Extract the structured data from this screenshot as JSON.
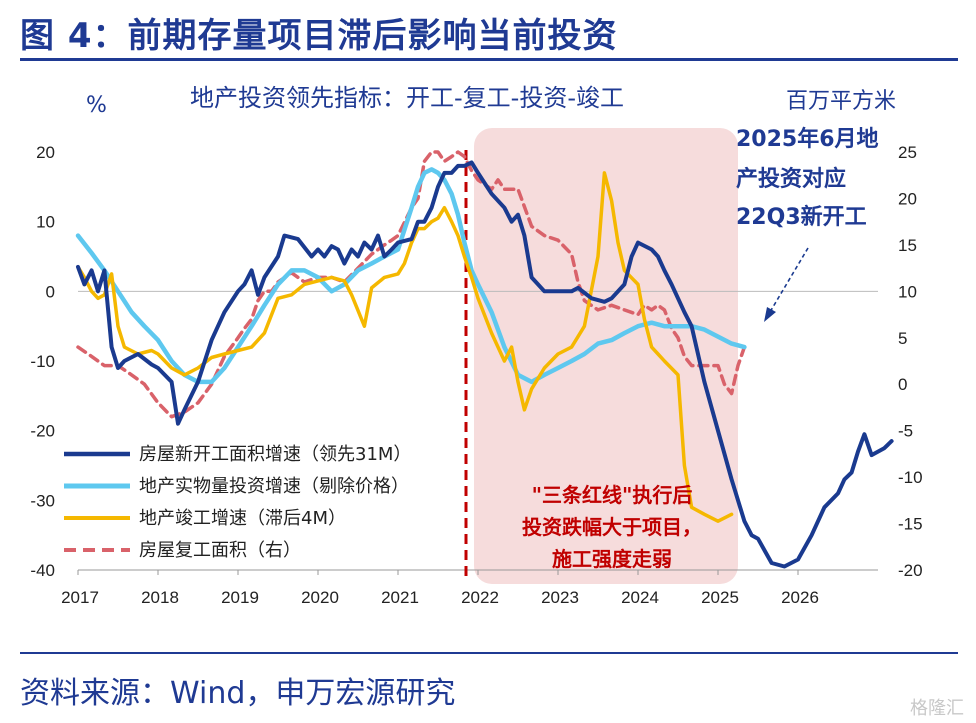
{
  "page": {
    "title": "图 4：前期存量项目滞后影响当前投资",
    "source": "资料来源：Wind，申万宏源研究",
    "watermark": "格隆汇"
  },
  "colors": {
    "navy": "#1a3a8f",
    "lightblue": "#5ec8ef",
    "gold": "#f5b800",
    "red_dash": "#d9626a",
    "shade": "#f6dcdc",
    "vline": "#c00000"
  },
  "chart_data": {
    "type": "line",
    "subtitle": "地产投资领先指标：开工-复工-投资-竣工",
    "left_unit": "%",
    "right_unit": "百万平方米",
    "x_ticks": [
      "2017",
      "2018",
      "2019",
      "2020",
      "2021",
      "2022",
      "2023",
      "2024",
      "2025",
      "2026"
    ],
    "x_range": [
      2017,
      2027
    ],
    "y_left": {
      "min": -40,
      "max": 20,
      "ticks": [
        "20",
        "10",
        "0",
        "-10",
        "-20",
        "-30",
        "-40"
      ]
    },
    "y_right": {
      "min": -20,
      "max": 25,
      "ticks": [
        "25",
        "20",
        "15",
        "10",
        "5",
        "0",
        "-5",
        "-10",
        "-15",
        "-20"
      ]
    },
    "shaded_region": {
      "x": [
        2021.95,
        2025.25
      ]
    },
    "vertical_line": {
      "x": 2021.85
    },
    "annotations": {
      "top_right": [
        "2025年6月地",
        "产投资对应",
        "22Q3新开工"
      ],
      "shade_note": [
        "\"三条红线\"执行后",
        "投资跌幅大于项目，",
        "施工强度走弱"
      ]
    },
    "series": [
      {
        "name": "房屋新开工面积增速（领先31M）",
        "axis": "left",
        "style": "navy",
        "points": [
          [
            2017.0,
            3.5
          ],
          [
            2017.08,
            1
          ],
          [
            2017.17,
            3
          ],
          [
            2017.25,
            0
          ],
          [
            2017.33,
            3
          ],
          [
            2017.42,
            -8
          ],
          [
            2017.5,
            -11
          ],
          [
            2017.58,
            -10
          ],
          [
            2017.75,
            -9
          ],
          [
            2017.92,
            -10.5
          ],
          [
            2018.0,
            -11
          ],
          [
            2018.17,
            -13
          ],
          [
            2018.25,
            -19
          ],
          [
            2018.33,
            -17
          ],
          [
            2018.5,
            -13
          ],
          [
            2018.67,
            -7
          ],
          [
            2018.83,
            -3
          ],
          [
            2019.0,
            0
          ],
          [
            2019.08,
            1
          ],
          [
            2019.17,
            3
          ],
          [
            2019.25,
            -0.5
          ],
          [
            2019.33,
            2
          ],
          [
            2019.5,
            5
          ],
          [
            2019.58,
            8
          ],
          [
            2019.75,
            7.5
          ],
          [
            2019.92,
            5
          ],
          [
            2020.0,
            6
          ],
          [
            2020.08,
            5
          ],
          [
            2020.17,
            6.5
          ],
          [
            2020.25,
            6
          ],
          [
            2020.33,
            4
          ],
          [
            2020.42,
            6
          ],
          [
            2020.5,
            5
          ],
          [
            2020.58,
            7
          ],
          [
            2020.67,
            6
          ],
          [
            2020.75,
            8
          ],
          [
            2020.83,
            5
          ],
          [
            2020.92,
            6
          ],
          [
            2021.0,
            7
          ],
          [
            2021.17,
            7.5
          ],
          [
            2021.25,
            10
          ],
          [
            2021.33,
            10
          ],
          [
            2021.42,
            12
          ],
          [
            2021.5,
            15
          ],
          [
            2021.58,
            17
          ],
          [
            2021.67,
            17
          ],
          [
            2021.75,
            18
          ],
          [
            2021.83,
            18
          ],
          [
            2021.92,
            18.5
          ],
          [
            2022.0,
            17
          ],
          [
            2022.17,
            14
          ],
          [
            2022.33,
            12
          ],
          [
            2022.42,
            10
          ],
          [
            2022.5,
            11
          ],
          [
            2022.58,
            8
          ],
          [
            2022.67,
            2
          ],
          [
            2022.83,
            0
          ],
          [
            2022.92,
            0
          ],
          [
            2023.0,
            0
          ],
          [
            2023.17,
            0
          ],
          [
            2023.25,
            0.5
          ],
          [
            2023.42,
            -1
          ],
          [
            2023.58,
            -1.5
          ],
          [
            2023.67,
            -1
          ],
          [
            2023.83,
            1
          ],
          [
            2023.92,
            5
          ],
          [
            2024.0,
            7
          ],
          [
            2024.17,
            6
          ],
          [
            2024.25,
            5
          ],
          [
            2024.33,
            3
          ],
          [
            2024.42,
            1
          ],
          [
            2024.5,
            -1
          ],
          [
            2024.58,
            -3
          ],
          [
            2024.67,
            -5
          ],
          [
            2024.83,
            -13
          ],
          [
            2025.0,
            -20
          ],
          [
            2025.17,
            -27
          ],
          [
            2025.33,
            -33
          ],
          [
            2025.42,
            -35
          ],
          [
            2025.5,
            -35.5
          ],
          [
            2025.67,
            -39
          ],
          [
            2025.83,
            -39.5
          ],
          [
            2026.0,
            -38.5
          ],
          [
            2026.17,
            -35
          ],
          [
            2026.33,
            -31
          ],
          [
            2026.5,
            -29
          ],
          [
            2026.58,
            -27
          ],
          [
            2026.67,
            -26
          ],
          [
            2026.75,
            -23
          ],
          [
            2026.83,
            -20.5
          ],
          [
            2026.92,
            -23.5
          ],
          [
            2027.0,
            -23
          ],
          [
            2027.08,
            -22.5
          ],
          [
            2027.17,
            -21.5
          ]
        ]
      },
      {
        "name": "地产实物量投资增速（剔除价格）",
        "axis": "left",
        "style": "lightblue",
        "points": [
          [
            2017.0,
            8
          ],
          [
            2017.17,
            5.5
          ],
          [
            2017.33,
            3
          ],
          [
            2017.5,
            0
          ],
          [
            2017.67,
            -3
          ],
          [
            2017.83,
            -5
          ],
          [
            2018.0,
            -7
          ],
          [
            2018.17,
            -10
          ],
          [
            2018.33,
            -12
          ],
          [
            2018.5,
            -13
          ],
          [
            2018.67,
            -13
          ],
          [
            2018.83,
            -11
          ],
          [
            2019.0,
            -8
          ],
          [
            2019.17,
            -5
          ],
          [
            2019.33,
            -2
          ],
          [
            2019.5,
            1
          ],
          [
            2019.67,
            3
          ],
          [
            2019.83,
            3
          ],
          [
            2020.0,
            2
          ],
          [
            2020.17,
            0
          ],
          [
            2020.33,
            1
          ],
          [
            2020.5,
            3
          ],
          [
            2020.67,
            4
          ],
          [
            2020.83,
            5
          ],
          [
            2021.0,
            6
          ],
          [
            2021.17,
            12
          ],
          [
            2021.25,
            15
          ],
          [
            2021.33,
            17
          ],
          [
            2021.42,
            17.5
          ],
          [
            2021.5,
            17
          ],
          [
            2021.58,
            16
          ],
          [
            2021.67,
            14
          ],
          [
            2021.75,
            11
          ],
          [
            2021.83,
            7
          ],
          [
            2021.92,
            3
          ],
          [
            2022.0,
            1
          ],
          [
            2022.17,
            -3
          ],
          [
            2022.33,
            -8
          ],
          [
            2022.5,
            -12
          ],
          [
            2022.67,
            -13
          ],
          [
            2022.83,
            -12
          ],
          [
            2023.0,
            -11
          ],
          [
            2023.17,
            -10
          ],
          [
            2023.33,
            -9
          ],
          [
            2023.5,
            -7.5
          ],
          [
            2023.67,
            -7
          ],
          [
            2023.83,
            -6
          ],
          [
            2024.0,
            -5
          ],
          [
            2024.17,
            -4.5
          ],
          [
            2024.33,
            -5
          ],
          [
            2024.5,
            -5
          ],
          [
            2024.67,
            -5
          ],
          [
            2024.83,
            -5.5
          ],
          [
            2025.0,
            -6.5
          ],
          [
            2025.17,
            -7.5
          ],
          [
            2025.33,
            -8
          ]
        ]
      },
      {
        "name": "地产竣工增速（滞后4M）",
        "axis": "left",
        "style": "gold",
        "points": [
          [
            2017.0,
            3.5
          ],
          [
            2017.08,
            2
          ],
          [
            2017.17,
            0
          ],
          [
            2017.25,
            -1
          ],
          [
            2017.33,
            -0.5
          ],
          [
            2017.42,
            2.5
          ],
          [
            2017.5,
            -5
          ],
          [
            2017.58,
            -8
          ],
          [
            2017.75,
            -9
          ],
          [
            2017.92,
            -8.5
          ],
          [
            2018.0,
            -9
          ],
          [
            2018.17,
            -11
          ],
          [
            2018.33,
            -12
          ],
          [
            2018.5,
            -11
          ],
          [
            2018.67,
            -9.5
          ],
          [
            2018.83,
            -9
          ],
          [
            2019.0,
            -8.5
          ],
          [
            2019.17,
            -8
          ],
          [
            2019.33,
            -6
          ],
          [
            2019.5,
            -1
          ],
          [
            2019.67,
            -0.5
          ],
          [
            2019.83,
            1
          ],
          [
            2020.0,
            1.5
          ],
          [
            2020.17,
            2
          ],
          [
            2020.33,
            1.5
          ],
          [
            2020.42,
            -0.5
          ],
          [
            2020.58,
            -5
          ],
          [
            2020.67,
            0.5
          ],
          [
            2020.83,
            2
          ],
          [
            2021.0,
            2.5
          ],
          [
            2021.08,
            4
          ],
          [
            2021.17,
            7
          ],
          [
            2021.25,
            9
          ],
          [
            2021.33,
            9
          ],
          [
            2021.42,
            10
          ],
          [
            2021.5,
            10.5
          ],
          [
            2021.58,
            12
          ],
          [
            2021.67,
            10
          ],
          [
            2021.75,
            8
          ],
          [
            2021.83,
            5
          ],
          [
            2021.92,
            2
          ],
          [
            2022.0,
            -1
          ],
          [
            2022.17,
            -6
          ],
          [
            2022.33,
            -10
          ],
          [
            2022.42,
            -8
          ],
          [
            2022.5,
            -13
          ],
          [
            2022.58,
            -17
          ],
          [
            2022.67,
            -14
          ],
          [
            2022.83,
            -11
          ],
          [
            2023.0,
            -9
          ],
          [
            2023.17,
            -8
          ],
          [
            2023.33,
            -5
          ],
          [
            2023.5,
            5
          ],
          [
            2023.58,
            17
          ],
          [
            2023.67,
            13
          ],
          [
            2023.75,
            7
          ],
          [
            2023.83,
            3
          ],
          [
            2024.0,
            1
          ],
          [
            2024.08,
            -4
          ],
          [
            2024.17,
            -8
          ],
          [
            2024.25,
            -9
          ],
          [
            2024.33,
            -10
          ],
          [
            2024.5,
            -12
          ],
          [
            2024.58,
            -25
          ],
          [
            2024.67,
            -31
          ],
          [
            2024.83,
            -32
          ],
          [
            2025.0,
            -33
          ],
          [
            2025.17,
            -32
          ]
        ]
      },
      {
        "name": "房屋复工面积（右）",
        "axis": "right",
        "style": "red_dash",
        "points": [
          [
            2017.0,
            4
          ],
          [
            2017.17,
            3
          ],
          [
            2017.33,
            2
          ],
          [
            2017.5,
            2
          ],
          [
            2017.67,
            1
          ],
          [
            2017.83,
            0
          ],
          [
            2018.0,
            -2
          ],
          [
            2018.17,
            -3.5
          ],
          [
            2018.33,
            -3
          ],
          [
            2018.5,
            -2
          ],
          [
            2018.67,
            0
          ],
          [
            2018.83,
            3
          ],
          [
            2019.0,
            5
          ],
          [
            2019.08,
            6
          ],
          [
            2019.17,
            7
          ],
          [
            2019.25,
            9
          ],
          [
            2019.33,
            10
          ],
          [
            2019.42,
            10
          ],
          [
            2019.5,
            11
          ],
          [
            2019.67,
            12
          ],
          [
            2019.83,
            11
          ],
          [
            2020.0,
            11.5
          ],
          [
            2020.17,
            11.5
          ],
          [
            2020.33,
            11
          ],
          [
            2020.5,
            12.5
          ],
          [
            2020.67,
            14
          ],
          [
            2020.83,
            15
          ],
          [
            2020.92,
            15.5
          ],
          [
            2021.0,
            16
          ],
          [
            2021.17,
            19
          ],
          [
            2021.25,
            20
          ],
          [
            2021.33,
            24
          ],
          [
            2021.42,
            25
          ],
          [
            2021.5,
            25
          ],
          [
            2021.58,
            24
          ],
          [
            2021.67,
            24.5
          ],
          [
            2021.75,
            25
          ],
          [
            2021.83,
            24.5
          ],
          [
            2021.92,
            23
          ],
          [
            2022.0,
            22
          ],
          [
            2022.17,
            21
          ],
          [
            2022.25,
            22
          ],
          [
            2022.33,
            21
          ],
          [
            2022.5,
            21
          ],
          [
            2022.67,
            17
          ],
          [
            2022.83,
            16
          ],
          [
            2023.0,
            15.5
          ],
          [
            2023.17,
            14
          ],
          [
            2023.25,
            11
          ],
          [
            2023.33,
            9
          ],
          [
            2023.5,
            8
          ],
          [
            2023.67,
            8.5
          ],
          [
            2023.83,
            8
          ],
          [
            2024.0,
            7.5
          ],
          [
            2024.08,
            8.5
          ],
          [
            2024.17,
            8
          ],
          [
            2024.25,
            8.5
          ],
          [
            2024.33,
            8
          ],
          [
            2024.42,
            6
          ],
          [
            2024.5,
            5
          ],
          [
            2024.58,
            3
          ],
          [
            2024.67,
            2
          ],
          [
            2024.83,
            2
          ],
          [
            2025.0,
            2
          ],
          [
            2025.08,
            0
          ],
          [
            2025.17,
            -1
          ],
          [
            2025.25,
            2
          ],
          [
            2025.33,
            4
          ]
        ]
      }
    ],
    "legend_order": [
      0,
      1,
      2,
      3
    ]
  }
}
